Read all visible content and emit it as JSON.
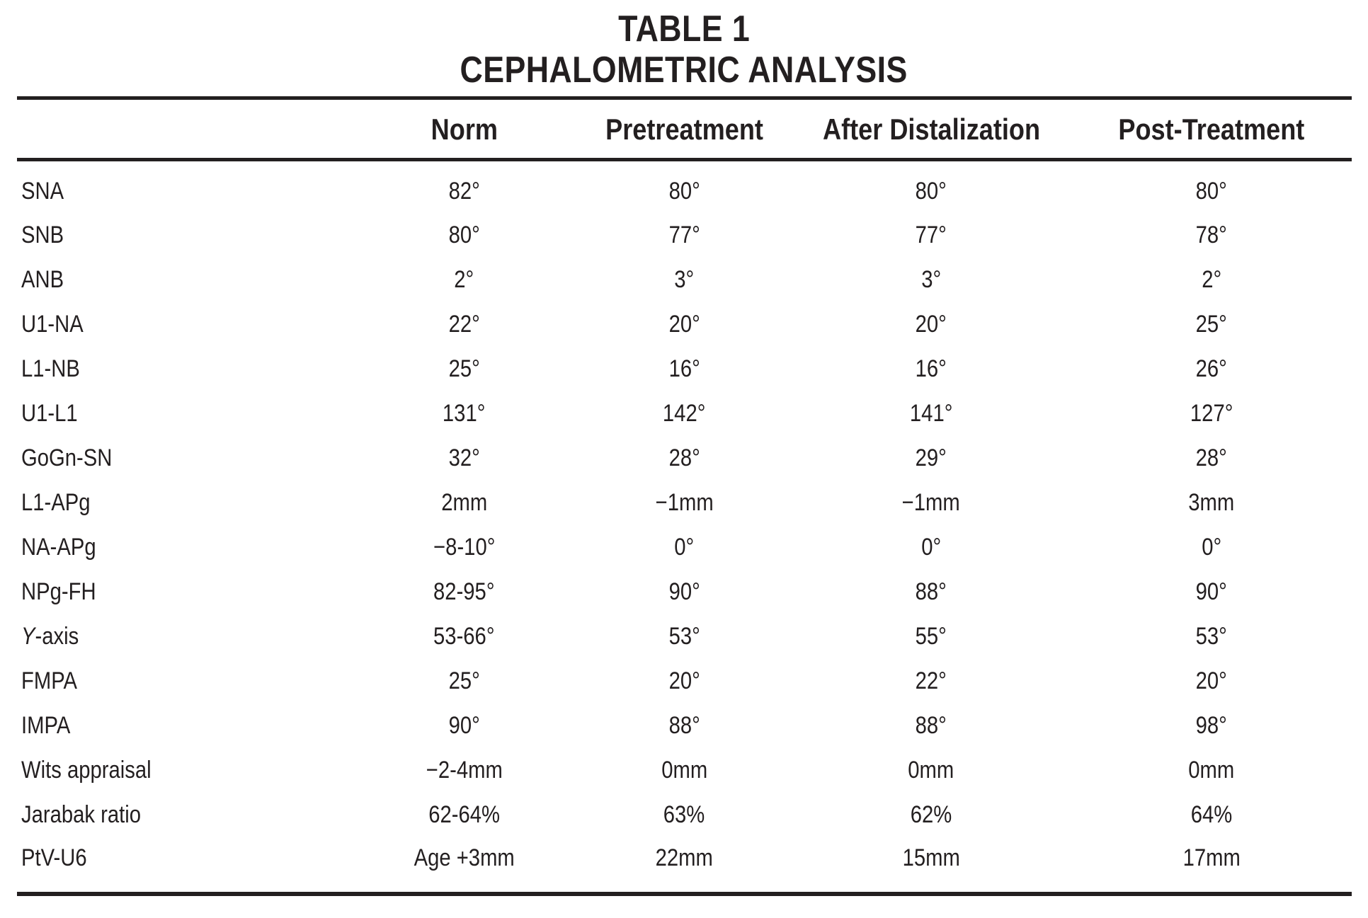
{
  "title": {
    "line1": "TABLE 1",
    "line2": "CEPHALOMETRIC ANALYSIS"
  },
  "table": {
    "corner_label": "",
    "columns": [
      "Norm",
      "Pretreatment",
      "After Distalization",
      "Post-Treatment"
    ],
    "rows": [
      {
        "label": "SNA",
        "values": [
          "82°",
          "80°",
          "80°",
          "80°"
        ]
      },
      {
        "label": "SNB",
        "values": [
          "80°",
          "77°",
          "77°",
          "78°"
        ]
      },
      {
        "label": "ANB",
        "values": [
          "2°",
          "3°",
          "3°",
          "2°"
        ]
      },
      {
        "label": "U1-NA",
        "values": [
          "22°",
          "20°",
          "20°",
          "25°"
        ]
      },
      {
        "label": "L1-NB",
        "values": [
          "25°",
          "16°",
          "16°",
          "26°"
        ]
      },
      {
        "label": "U1-L1",
        "values": [
          "131°",
          "142°",
          "141°",
          "127°"
        ]
      },
      {
        "label": "GoGn-SN",
        "values": [
          "32°",
          "28°",
          "29°",
          "28°"
        ]
      },
      {
        "label": "L1-APg",
        "values": [
          "2mm",
          "−1mm",
          "−1mm",
          "3mm"
        ]
      },
      {
        "label": "NA-APg",
        "values": [
          "−8-10°",
          "0°",
          "0°",
          "0°"
        ]
      },
      {
        "label": "NPg-FH",
        "values": [
          "82-95°",
          "90°",
          "88°",
          "90°"
        ]
      },
      {
        "label": "Y-axis",
        "italic_first": true,
        "values": [
          "53-66°",
          "53°",
          "55°",
          "53°"
        ]
      },
      {
        "label": "FMPA",
        "values": [
          "25°",
          "20°",
          "22°",
          "20°"
        ]
      },
      {
        "label": "IMPA",
        "values": [
          "90°",
          "88°",
          "88°",
          "98°"
        ]
      },
      {
        "label": "Wits appraisal",
        "values": [
          "−2-4mm",
          "0mm",
          "0mm",
          "0mm"
        ]
      },
      {
        "label": "Jarabak ratio",
        "values": [
          "62-64%",
          "63%",
          "62%",
          "64%"
        ]
      },
      {
        "label": "PtV-U6",
        "values": [
          "Age +3mm",
          "22mm",
          "15mm",
          "17mm"
        ]
      }
    ]
  },
  "colors": {
    "ink": "#231f20",
    "background": "#ffffff"
  }
}
